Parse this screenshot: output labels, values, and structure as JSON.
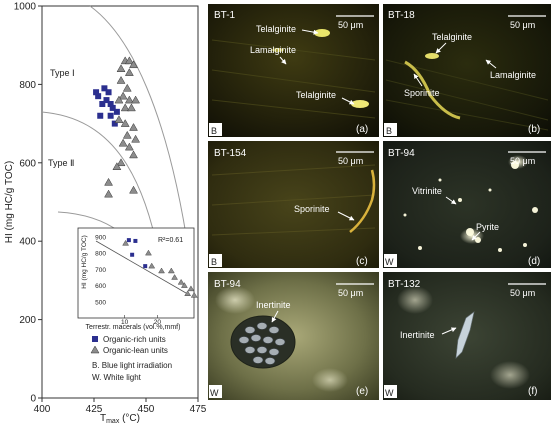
{
  "chart_data": [
    {
      "type": "scatter",
      "xlabel_main": "T",
      "xlabel_sub": "max",
      "xlabel_unit": " (°C)",
      "ylabel": "HI (mg HC/g TOC)",
      "xlim": [
        400,
        475
      ],
      "ylim": [
        0,
        1000
      ],
      "xticks": [
        "400",
        "425",
        "450",
        "475"
      ],
      "yticks": [
        "0",
        "200",
        "400",
        "600",
        "800",
        "1000"
      ],
      "type_labels": [
        "Type Ⅰ",
        "Type Ⅱ"
      ],
      "series": [
        {
          "name": "Organic-rich units",
          "marker": "square",
          "color": "#2b2f8f",
          "points": [
            [
              430,
              790
            ],
            [
              432,
              780
            ],
            [
              429,
              750
            ],
            [
              431,
              760
            ],
            [
              433,
              750
            ],
            [
              434,
              740
            ],
            [
              427,
              770
            ],
            [
              426,
              780
            ],
            [
              428,
              720
            ],
            [
              433,
              720
            ],
            [
              436,
              730
            ],
            [
              435,
              700
            ]
          ]
        },
        {
          "name": "Organic-lean units",
          "marker": "triangle",
          "color": "#8c8c8c",
          "points": [
            [
              440,
              860
            ],
            [
              442,
              860
            ],
            [
              444,
              850
            ],
            [
              438,
              840
            ],
            [
              442,
              830
            ],
            [
              438,
              810
            ],
            [
              441,
              790
            ],
            [
              439,
              770
            ],
            [
              437,
              760
            ],
            [
              442,
              760
            ],
            [
              445,
              760
            ],
            [
              440,
              740
            ],
            [
              443,
              740
            ],
            [
              437,
              710
            ],
            [
              440,
              700
            ],
            [
              444,
              690
            ],
            [
              441,
              670
            ],
            [
              445,
              660
            ],
            [
              439,
              650
            ],
            [
              442,
              640
            ],
            [
              444,
              620
            ],
            [
              438,
              600
            ],
            [
              436,
              590
            ],
            [
              432,
              550
            ],
            [
              444,
              530
            ],
            [
              432,
              520
            ]
          ]
        }
      ],
      "legend": [
        "Organic-rich units",
        "Organic-lean units"
      ],
      "legend_notes": [
        "B.  Blue light irradiation",
        "W.  White light"
      ]
    },
    {
      "type": "scatter",
      "xlabel": "Terrestr. macerals (vol.%,mmf)",
      "ylabel": "HI (mg HC/g TOC)",
      "annotation": "R²=0.61",
      "xlim": [
        0,
        30
      ],
      "ylim": [
        450,
        930
      ],
      "xticks": [
        "10",
        "20"
      ],
      "yticks": [
        "500",
        "600",
        "700",
        "800",
        "900"
      ],
      "series": [
        {
          "name": "Organic-rich units",
          "points": [
            [
              7,
              880
            ],
            [
              9,
              875
            ],
            [
              8,
              790
            ],
            [
              12,
              720
            ]
          ]
        },
        {
          "name": "Organic-lean units",
          "points": [
            [
              6,
              860
            ],
            [
              13,
              800
            ],
            [
              17,
              690
            ],
            [
              20,
              690
            ],
            [
              14,
              720
            ],
            [
              21,
              650
            ],
            [
              23,
              620
            ],
            [
              24,
              600
            ],
            [
              26,
              580
            ],
            [
              25,
              550
            ],
            [
              27,
              540
            ]
          ]
        }
      ]
    }
  ],
  "panels": [
    {
      "id": "a",
      "sample": "BT-1",
      "scale": "50 μm",
      "light": "B",
      "letter": "(a)",
      "labels": [
        "Telalginite",
        "Lamalginite",
        "Telalginite"
      ]
    },
    {
      "id": "b",
      "sample": "BT-18",
      "scale": "50 μm",
      "light": "B",
      "letter": "(b)",
      "labels": [
        "Telalginite",
        "Sporinite",
        "Lamalginite"
      ]
    },
    {
      "id": "c",
      "sample": "BT-154",
      "scale": "50 μm",
      "light": "B",
      "letter": "(c)",
      "labels": [
        "Sporinite"
      ]
    },
    {
      "id": "d",
      "sample": "BT-94",
      "scale": "50 μm",
      "light": "W",
      "letter": "(d)",
      "labels": [
        "Vitrinite",
        "Pyrite"
      ]
    },
    {
      "id": "e",
      "sample": "BT-94",
      "scale": "50 μm",
      "light": "W",
      "letter": "(e)",
      "labels": [
        "Inertinite"
      ]
    },
    {
      "id": "f",
      "sample": "BT-132",
      "scale": "50 μm",
      "light": "W",
      "letter": "(f)",
      "labels": [
        "Inertinite"
      ]
    }
  ]
}
